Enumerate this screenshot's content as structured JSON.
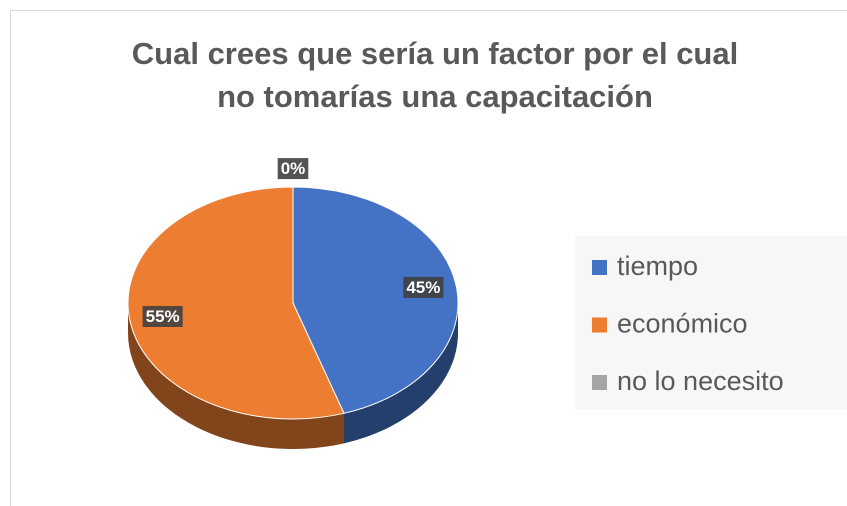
{
  "chart_data": {
    "type": "pie",
    "title": "Cual crees que sería un factor por el cual no tomarías una capacitación",
    "categories": [
      "tiempo",
      "económico",
      "no lo necesito"
    ],
    "values": [
      45,
      55,
      0
    ],
    "value_labels": [
      "45%",
      "55%",
      "0%"
    ],
    "colors": [
      "#4472c4",
      "#ed7d31",
      "#a5a5a5"
    ],
    "legend": "right"
  }
}
